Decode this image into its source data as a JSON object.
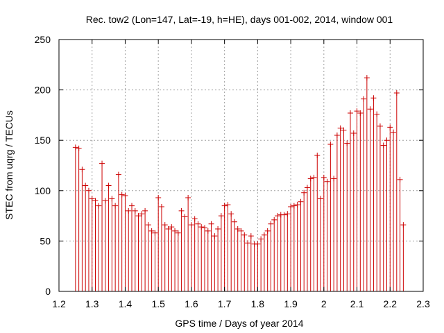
{
  "chart_data": {
    "type": "scatter",
    "title": "Rec. tow2 (Lon=147, Lat=-19, h=HE), days 001-002, 2014, window 001",
    "xlabel": "GPS time / Days of year 2014",
    "ylabel": "STEC from uqrg / TECUs",
    "xlim": [
      1.2,
      2.3
    ],
    "ylim": [
      0,
      250
    ],
    "x_ticks": [
      "1.2",
      "1.3",
      "1.4",
      "1.5",
      "1.6",
      "1.7",
      "1.8",
      "1.9",
      "2",
      "2.1",
      "2.2",
      "2.3"
    ],
    "y_ticks": [
      "0",
      "50",
      "100",
      "150",
      "200",
      "250"
    ],
    "grid": true,
    "errorbar_lower": 0,
    "series": [
      {
        "name": "STEC",
        "color": "#cc0000",
        "marker": "plus",
        "x": [
          1.25,
          1.26,
          1.27,
          1.28,
          1.29,
          1.3,
          1.31,
          1.32,
          1.33,
          1.34,
          1.35,
          1.36,
          1.37,
          1.38,
          1.39,
          1.4,
          1.41,
          1.42,
          1.43,
          1.44,
          1.45,
          1.46,
          1.47,
          1.48,
          1.49,
          1.5,
          1.51,
          1.52,
          1.53,
          1.54,
          1.55,
          1.56,
          1.57,
          1.58,
          1.59,
          1.6,
          1.61,
          1.62,
          1.63,
          1.64,
          1.65,
          1.66,
          1.67,
          1.68,
          1.69,
          1.7,
          1.71,
          1.72,
          1.73,
          1.74,
          1.75,
          1.76,
          1.77,
          1.78,
          1.79,
          1.8,
          1.81,
          1.82,
          1.83,
          1.84,
          1.85,
          1.86,
          1.87,
          1.88,
          1.89,
          1.9,
          1.91,
          1.92,
          1.93,
          1.94,
          1.95,
          1.96,
          1.97,
          1.98,
          1.99,
          2.0,
          2.01,
          2.02,
          2.03,
          2.04,
          2.05,
          2.06,
          2.07,
          2.08,
          2.09,
          2.1,
          2.11,
          2.12,
          2.13,
          2.14,
          2.15,
          2.16,
          2.17,
          2.18,
          2.19,
          2.2,
          2.21,
          2.22,
          2.23,
          2.24
        ],
        "y": [
          143,
          142,
          121,
          105,
          100,
          92,
          90,
          85,
          127,
          90,
          105,
          92,
          85,
          116,
          96,
          95,
          80,
          85,
          80,
          75,
          77,
          80,
          66,
          60,
          58,
          93,
          84,
          66,
          62,
          64,
          60,
          58,
          80,
          74,
          93,
          66,
          72,
          67,
          64,
          63,
          60,
          67,
          55,
          62,
          75,
          85,
          86,
          77,
          69,
          62,
          60,
          56,
          48,
          55,
          47,
          47,
          52,
          56,
          60,
          67,
          71,
          75,
          76,
          76,
          77,
          84,
          85,
          86,
          89,
          98,
          103,
          112,
          113,
          135,
          92,
          113,
          109,
          146,
          112,
          155,
          162,
          160,
          147,
          177,
          157,
          179,
          177,
          191,
          212,
          181,
          192,
          176,
          164,
          145,
          150,
          163,
          158,
          197,
          111,
          66
        ]
      }
    ]
  }
}
